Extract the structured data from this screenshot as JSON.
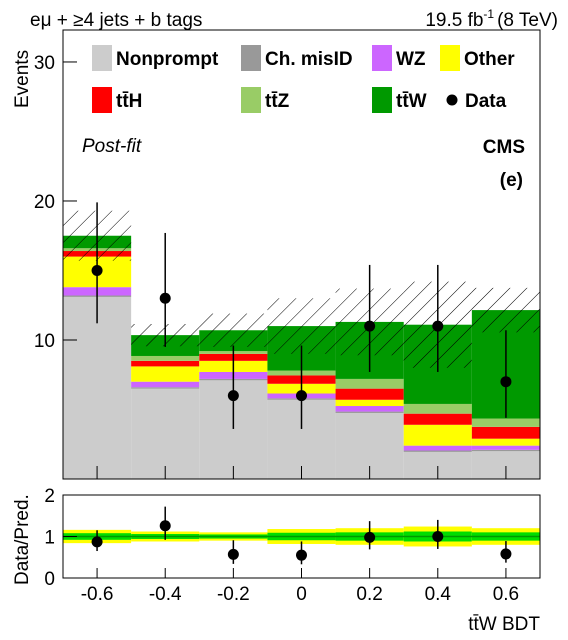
{
  "chart_data": [
    {
      "type": "stacked_histogram",
      "title": "eμ + ≥4 jets + b tags",
      "lumi": "19.5 fb",
      "lumi_exponent": "-1",
      "energy": "(8 TeV)",
      "annotations": [
        "Post-fit",
        "CMS",
        "(e)"
      ],
      "ylabel": "Events",
      "bins": [
        -0.7,
        -0.5,
        -0.3,
        -0.1,
        0.1,
        0.3,
        0.5,
        0.7
      ],
      "xlim": [
        -0.7,
        0.7
      ],
      "ylim": [
        0,
        32.3
      ],
      "yticks": [
        10,
        20,
        30
      ],
      "series": [
        {
          "name": "Nonprompt",
          "color": "#cccccc",
          "values": [
            13.1,
            6.5,
            7.1,
            5.7,
            4.75,
            1.95,
            2.0
          ]
        },
        {
          "name": "Ch. misID",
          "color": "#999999",
          "values": [
            0.1,
            0.1,
            0.1,
            0.1,
            0.1,
            0.1,
            0.1
          ]
        },
        {
          "name": "WZ",
          "color": "#cc66ff",
          "values": [
            0.6,
            0.4,
            0.5,
            0.35,
            0.4,
            0.35,
            0.3
          ]
        },
        {
          "name": "Other",
          "color": "#ffff00",
          "values": [
            2.2,
            1.1,
            0.8,
            0.7,
            0.45,
            1.5,
            0.5
          ]
        },
        {
          "name": "tt̄H",
          "color": "#ff0000",
          "values": [
            0.4,
            0.4,
            0.5,
            0.6,
            0.8,
            0.8,
            0.85
          ]
        },
        {
          "name": "tt̄Z",
          "color": "#99cc66",
          "values": [
            0.2,
            0.35,
            0.2,
            0.35,
            0.7,
            0.7,
            0.6
          ]
        },
        {
          "name": "tt̄W",
          "color": "#009900",
          "values": [
            0.9,
            1.5,
            1.5,
            3.2,
            4.1,
            5.7,
            7.8
          ]
        }
      ],
      "uncertainty": [
        1.8,
        0.8,
        1.2,
        2.0,
        2.4,
        3.1,
        1.6
      ],
      "data": {
        "name": "Data",
        "color": "#000000",
        "values": [
          15,
          13,
          6,
          6,
          11,
          11,
          7
        ],
        "errors_low": [
          3.8,
          3.5,
          2.4,
          2.4,
          3.3,
          3.3,
          2.6
        ],
        "errors_high": [
          4.9,
          4.7,
          3.6,
          3.6,
          4.4,
          4.4,
          3.7
        ]
      }
    },
    {
      "type": "ratio",
      "xlabel": "tt̄W BDT",
      "ylabel": "Data/Pred.",
      "xlim": [
        -0.7,
        0.7
      ],
      "xticks": [
        -0.6,
        -0.4,
        -0.2,
        0,
        0.2,
        0.4,
        0.6
      ],
      "ylim": [
        0,
        2
      ],
      "yticks": [
        0,
        1,
        2
      ],
      "band_2sigma": [
        0.16,
        0.12,
        0.1,
        0.18,
        0.2,
        0.24,
        0.2
      ],
      "band_1sigma": [
        0.08,
        0.06,
        0.05,
        0.09,
        0.1,
        0.12,
        0.1
      ],
      "values": [
        0.87,
        1.26,
        0.57,
        0.55,
        0.98,
        1.0,
        0.58
      ],
      "errors_low": [
        0.22,
        0.34,
        0.23,
        0.22,
        0.29,
        0.3,
        0.21
      ],
      "errors_high": [
        0.28,
        0.46,
        0.34,
        0.33,
        0.39,
        0.4,
        0.31
      ]
    }
  ]
}
